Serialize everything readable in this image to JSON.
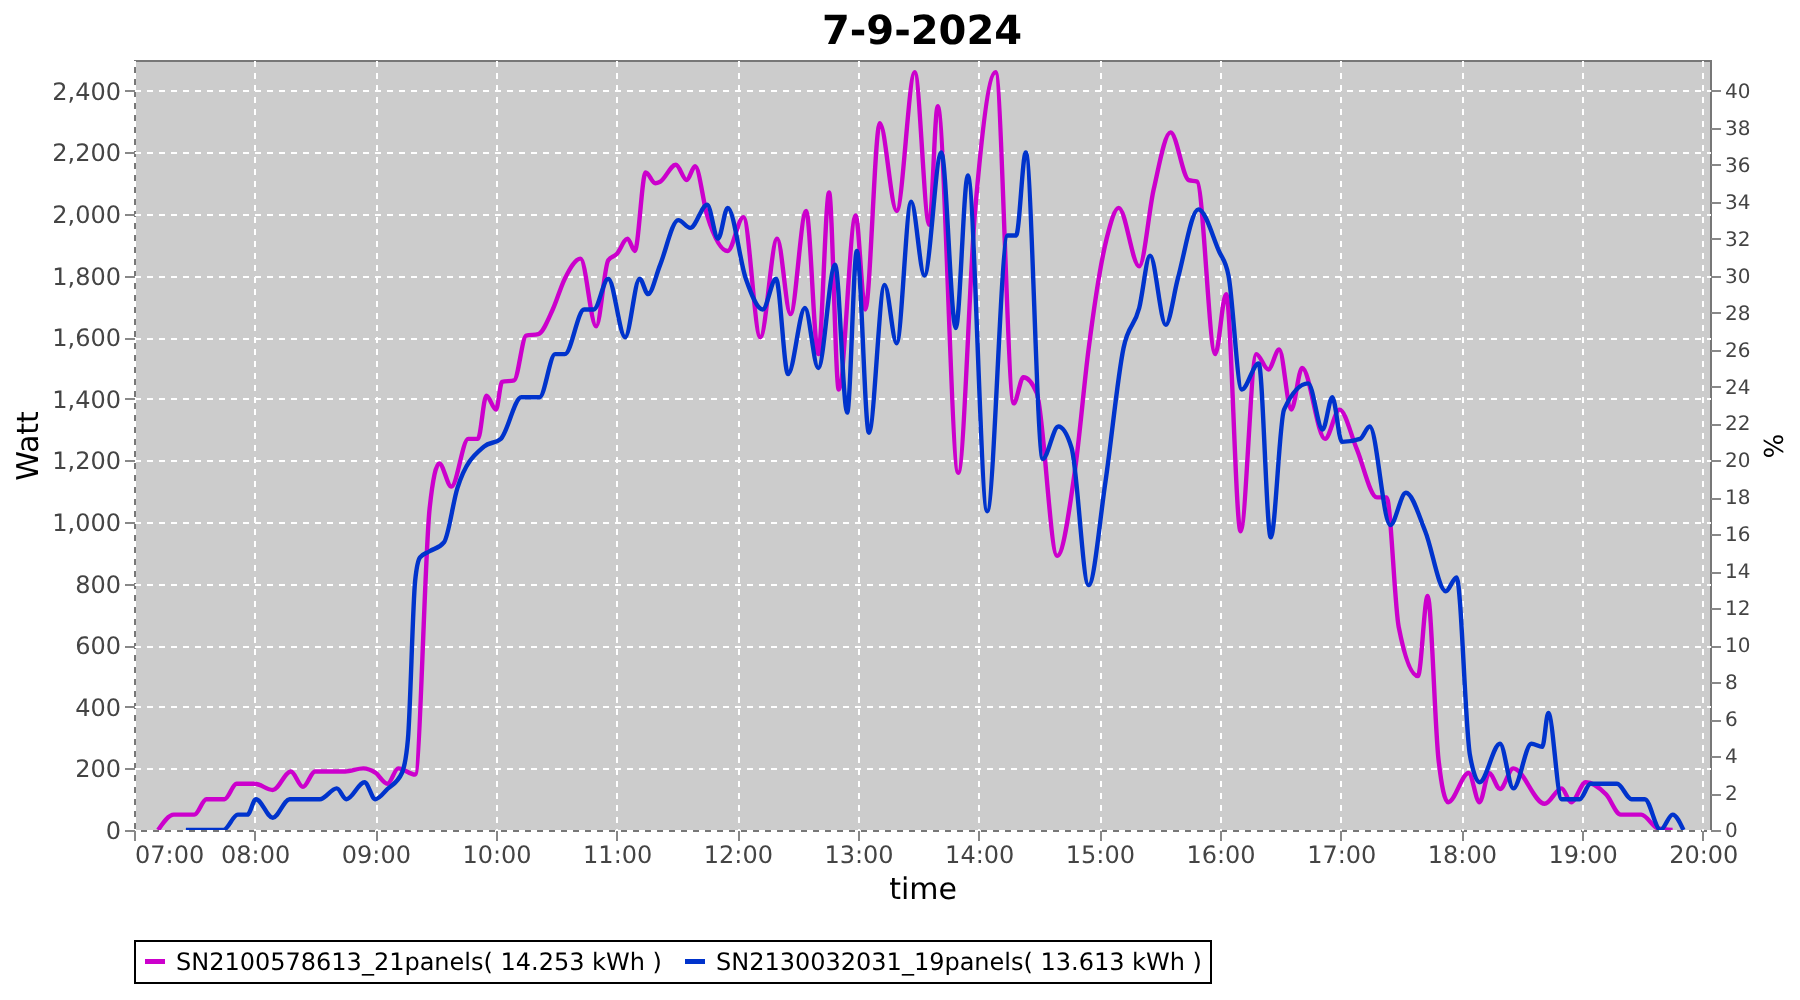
{
  "chart_data": {
    "type": "line",
    "title": "7-9-2024",
    "xlabel": "time",
    "ylabel": "Watt",
    "y2label": "%",
    "xlim": [
      7,
      20.06
    ],
    "xticks": [
      {
        "value": 7,
        "label": "07:00"
      },
      {
        "value": 8,
        "label": "08:00"
      },
      {
        "value": 9,
        "label": "09:00"
      },
      {
        "value": 10,
        "label": "10:00"
      },
      {
        "value": 11,
        "label": "11:00"
      },
      {
        "value": 12,
        "label": "12:00"
      },
      {
        "value": 13,
        "label": "13:00"
      },
      {
        "value": 14,
        "label": "14:00"
      },
      {
        "value": 15,
        "label": "15:00"
      },
      {
        "value": 16,
        "label": "16:00"
      },
      {
        "value": 17,
        "label": "17:00"
      },
      {
        "value": 18,
        "label": "18:00"
      },
      {
        "value": 19,
        "label": "19:00"
      },
      {
        "value": 20,
        "label": "20:00"
      }
    ],
    "ylim": [
      0,
      2500
    ],
    "yticks": [
      0,
      200,
      400,
      600,
      800,
      {
        "value": 1000,
        "label": "1,000"
      },
      {
        "value": 1200,
        "label": "1,200"
      },
      {
        "value": 1400,
        "label": "1,400"
      },
      {
        "value": 1600,
        "label": "1,600"
      },
      {
        "value": 1800,
        "label": "1,800"
      },
      {
        "value": 2000,
        "label": "2,000"
      },
      {
        "value": 2200,
        "label": "2,200"
      },
      {
        "value": 2400,
        "label": "2,400"
      }
    ],
    "y2lim": [
      0,
      41.67
    ],
    "y2ticks": [
      0,
      2,
      4,
      6,
      8,
      10,
      12,
      14,
      16,
      18,
      20,
      22,
      24,
      26,
      28,
      30,
      32,
      34,
      36,
      38,
      40
    ],
    "grid": true,
    "legend": "bottom",
    "line_style": "solid",
    "series": [
      {
        "name": "SN2100578613_21panels( 14.253 kWh )",
        "color": "#cc00cc",
        "x": [
          7.2,
          7.33,
          7.5,
          7.6,
          7.75,
          7.85,
          8.0,
          8.15,
          8.3,
          8.4,
          8.5,
          8.75,
          8.9,
          9.0,
          9.1,
          9.19,
          9.33,
          9.45,
          9.53,
          9.63,
          9.77,
          9.85,
          9.92,
          10.0,
          10.05,
          10.15,
          10.25,
          10.35,
          10.47,
          10.57,
          10.7,
          10.83,
          10.93,
          11.0,
          11.09,
          11.15,
          11.24,
          11.32,
          11.36,
          11.49,
          11.58,
          11.65,
          11.75,
          11.92,
          12.05,
          12.19,
          12.33,
          12.44,
          12.57,
          12.67,
          12.76,
          12.84,
          12.98,
          13.06,
          13.18,
          13.32,
          13.47,
          13.59,
          13.66,
          13.83,
          13.97,
          14.14,
          14.29,
          14.37,
          14.48,
          14.65,
          14.8,
          14.91,
          15.06,
          15.16,
          15.33,
          15.45,
          15.59,
          15.74,
          15.81,
          15.96,
          16.05,
          16.17,
          16.3,
          16.4,
          16.49,
          16.59,
          16.68,
          16.87,
          16.99,
          17.13,
          17.3,
          17.38,
          17.48,
          17.64,
          17.72,
          17.81,
          17.89,
          18.06,
          18.15,
          18.23,
          18.32,
          18.43,
          18.69,
          18.83,
          18.91,
          19.03,
          19.2,
          19.32,
          19.49,
          19.63,
          19.75
        ],
        "values": [
          0,
          50,
          50,
          100,
          100,
          150,
          150,
          130,
          190,
          140,
          190,
          190,
          200,
          186,
          150,
          200,
          180,
          1045,
          1190,
          1115,
          1270,
          1270,
          1410,
          1365,
          1455,
          1460,
          1605,
          1610,
          1690,
          1790,
          1855,
          1635,
          1850,
          1870,
          1920,
          1880,
          2135,
          2100,
          2105,
          2160,
          2110,
          2155,
          1995,
          1880,
          1990,
          1600,
          1920,
          1675,
          2010,
          1545,
          2070,
          1430,
          1995,
          1690,
          2295,
          2010,
          2460,
          1965,
          2350,
          1160,
          2010,
          2460,
          1385,
          1470,
          1420,
          890,
          1175,
          1560,
          1920,
          2020,
          1830,
          2080,
          2265,
          2110,
          2105,
          1545,
          1740,
          970,
          1545,
          1495,
          1560,
          1365,
          1500,
          1270,
          1365,
          1240,
          1080,
          1080,
          660,
          500,
          760,
          230,
          90,
          185,
          90,
          185,
          133,
          200,
          85,
          135,
          90,
          155,
          115,
          50,
          50,
          5,
          0
        ]
      },
      {
        "name": "SN2130032031_19panels( 13.613 kWh )",
        "color": "#0033cc",
        "x": [
          7.43,
          7.57,
          7.74,
          7.86,
          7.94,
          8.01,
          8.15,
          8.29,
          8.54,
          8.68,
          8.76,
          8.91,
          9.0,
          9.1,
          9.22,
          9.27,
          9.33,
          9.37,
          9.45,
          9.57,
          9.68,
          9.9,
          10.04,
          10.21,
          10.36,
          10.49,
          10.57,
          10.73,
          10.81,
          10.93,
          11.07,
          11.19,
          11.26,
          11.36,
          11.51,
          11.61,
          11.75,
          11.84,
          11.92,
          12.07,
          12.21,
          12.32,
          12.42,
          12.56,
          12.67,
          12.81,
          12.91,
          12.99,
          13.09,
          13.22,
          13.32,
          13.44,
          13.55,
          13.69,
          13.81,
          13.91,
          14.07,
          14.24,
          14.31,
          14.39,
          14.53,
          14.66,
          14.77,
          14.91,
          15.05,
          15.2,
          15.33,
          15.42,
          15.55,
          15.65,
          15.82,
          15.99,
          16.07,
          16.18,
          16.32,
          16.42,
          16.53,
          16.73,
          16.85,
          16.93,
          17.01,
          17.16,
          17.24,
          17.41,
          17.54,
          17.7,
          17.87,
          17.96,
          18.07,
          18.15,
          18.32,
          18.43,
          18.58,
          18.67,
          18.72,
          18.83,
          18.98,
          19.07,
          19.29,
          19.41,
          19.52,
          19.65,
          19.75,
          19.84
        ],
        "values": [
          0,
          0,
          0,
          50,
          50,
          100,
          40,
          100,
          100,
          135,
          100,
          155,
          100,
          133,
          185,
          295,
          810,
          885,
          905,
          935,
          1110,
          1245,
          1270,
          1405,
          1405,
          1545,
          1545,
          1690,
          1690,
          1790,
          1600,
          1790,
          1740,
          1835,
          1980,
          1955,
          2030,
          1920,
          2020,
          1790,
          1690,
          1790,
          1480,
          1695,
          1500,
          1835,
          1355,
          1880,
          1290,
          1770,
          1580,
          2040,
          1800,
          2200,
          1630,
          2125,
          1035,
          1930,
          1930,
          2200,
          1205,
          1310,
          1240,
          795,
          1130,
          1565,
          1695,
          1865,
          1640,
          1790,
          2015,
          1880,
          1800,
          1430,
          1515,
          950,
          1365,
          1450,
          1300,
          1405,
          1260,
          1270,
          1310,
          990,
          1095,
          970,
          775,
          820,
          245,
          155,
          280,
          135,
          280,
          270,
          380,
          100,
          100,
          150,
          150,
          100,
          100,
          0,
          50,
          0
        ]
      }
    ]
  }
}
